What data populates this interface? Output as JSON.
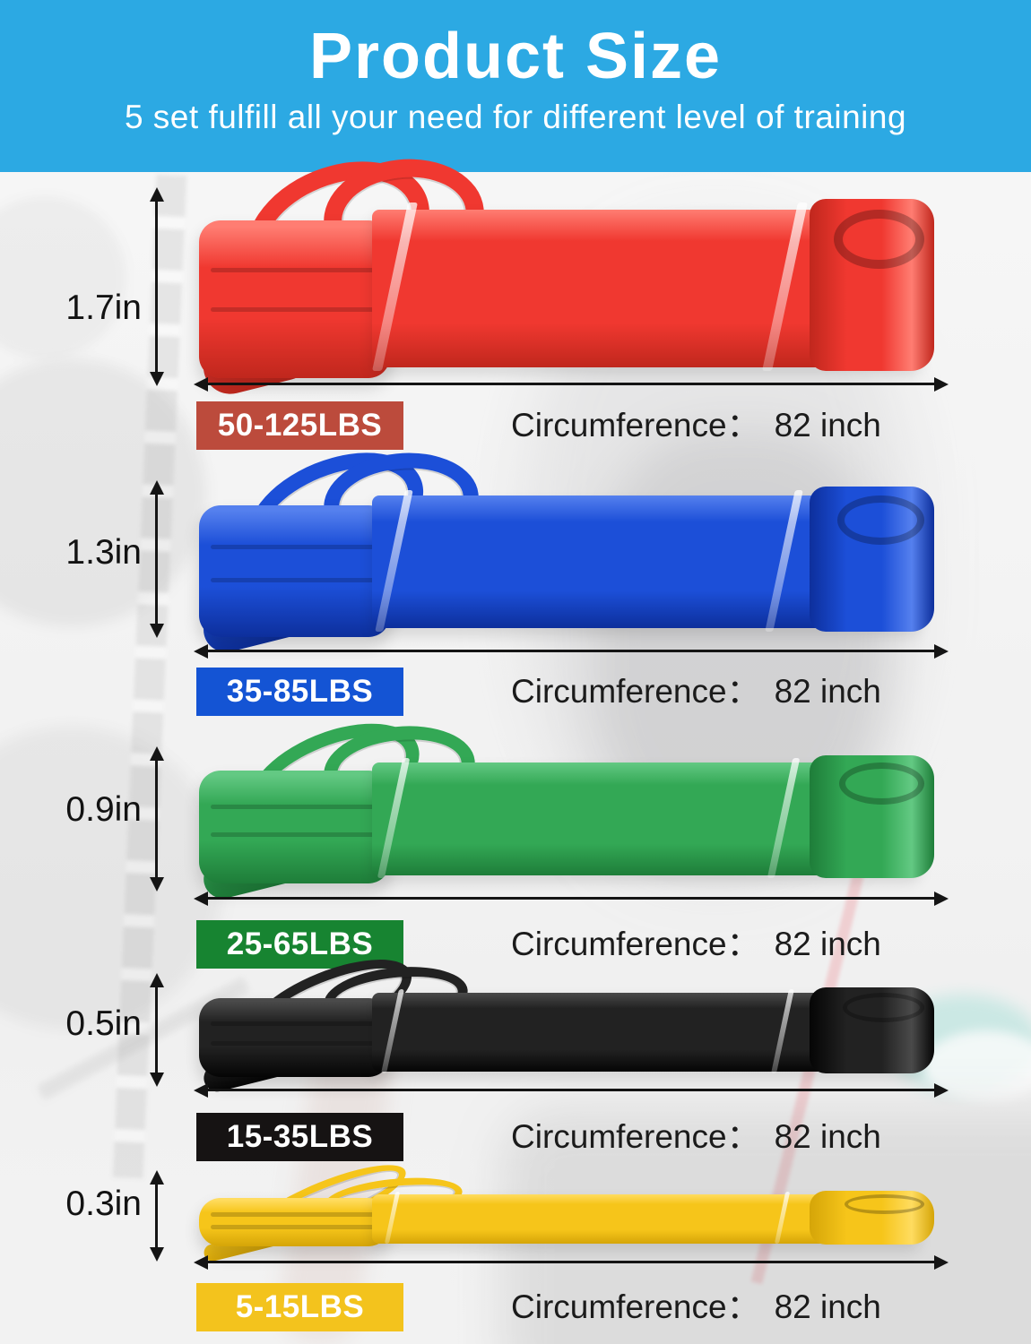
{
  "header": {
    "title": "Product Size",
    "subtitle": "5 set fulfill all your need for different level of training",
    "bg_color": "#2CA9E3",
    "text_color": "#FFFFFF"
  },
  "labels": {
    "circumference": "Circumference："
  },
  "bands": [
    {
      "id": "red",
      "height_label": "1.7in",
      "weight_label": "50-125LBS",
      "circumference_value": "82 inch",
      "colors": {
        "base": "#F03830",
        "light": "#FF7D72",
        "dark": "#C0271D",
        "chip": "#BC4B3C",
        "chip_text": "#FFFFFF"
      }
    },
    {
      "id": "blue",
      "height_label": "1.3in",
      "weight_label": "35-85LBS",
      "circumference_value": "82 inch",
      "colors": {
        "base": "#1C4FD8",
        "light": "#5580EE",
        "dark": "#0D2F9C",
        "chip": "#1454D4",
        "chip_text": "#FFFFFF"
      }
    },
    {
      "id": "green",
      "height_label": "0.9in",
      "weight_label": "25-65LBS",
      "circumference_value": "82 inch",
      "colors": {
        "base": "#33A855",
        "light": "#63C983",
        "dark": "#1E7D39",
        "chip": "#178431",
        "chip_text": "#FFFFFF"
      }
    },
    {
      "id": "black",
      "height_label": "0.5in",
      "weight_label": "15-35LBS",
      "circumference_value": "82 inch",
      "colors": {
        "base": "#222222",
        "light": "#4A4A4A",
        "dark": "#050505",
        "chip": "#161313",
        "chip_text": "#FFFFFF"
      }
    },
    {
      "id": "yellow",
      "height_label": "0.3in",
      "weight_label": "5-15LBS",
      "circumference_value": "82 inch",
      "colors": {
        "base": "#F6C51A",
        "light": "#FFDC60",
        "dark": "#D5A508",
        "chip": "#F3C31D",
        "chip_text": "#FFFFFF"
      }
    }
  ]
}
